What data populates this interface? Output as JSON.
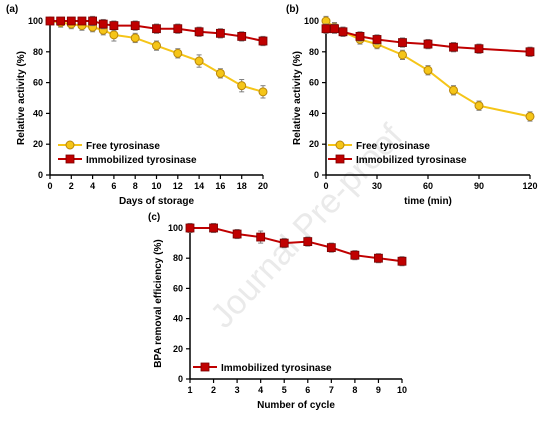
{
  "colors": {
    "free": "#f5c518",
    "free_stroke": "#b8860b",
    "immobilized": "#c00000",
    "axis": "#000000",
    "errorbar": "#7f7f7f",
    "watermark": "#cfcfcf"
  },
  "watermark": "Journal Pre-proof",
  "chart_data": [
    {
      "panel_label": "(a)",
      "type": "line",
      "xlabel": "Days of storage",
      "ylabel": "Relative activity (%)",
      "xlim": [
        0,
        20
      ],
      "ylim": [
        0,
        100
      ],
      "xticks": [
        0,
        2,
        4,
        6,
        8,
        10,
        12,
        14,
        16,
        18,
        20
      ],
      "yticks": [
        0,
        20,
        40,
        60,
        80,
        100
      ],
      "grid": false,
      "legend_position": "bottom-left",
      "series": [
        {
          "name": "Free tyrosinase",
          "marker": "circle",
          "x": [
            0,
            1,
            2,
            3,
            4,
            5,
            6,
            8,
            10,
            12,
            14,
            16,
            18,
            20
          ],
          "y": [
            100,
            99,
            98,
            97,
            96,
            94,
            91,
            89,
            84,
            79,
            74,
            66,
            58,
            54
          ],
          "err": [
            2,
            3,
            3,
            3,
            3,
            3,
            4,
            3,
            3,
            3,
            4,
            3,
            4,
            4
          ]
        },
        {
          "name": "Immobilized tyrosinase",
          "marker": "square",
          "x": [
            0,
            1,
            2,
            3,
            4,
            5,
            6,
            8,
            10,
            12,
            14,
            16,
            18,
            20
          ],
          "y": [
            100,
            100,
            100,
            100,
            100,
            98,
            97,
            97,
            95,
            95,
            93,
            92,
            90,
            87
          ],
          "err": [
            2,
            2,
            2,
            2,
            3,
            3,
            3,
            3,
            3,
            3,
            3,
            3,
            3,
            3
          ]
        }
      ]
    },
    {
      "panel_label": "(b)",
      "type": "line",
      "xlabel": "time (min)",
      "ylabel": "Relative activity (%)",
      "xlim": [
        0,
        120
      ],
      "ylim": [
        0,
        100
      ],
      "xticks": [
        0,
        30,
        60,
        90,
        120
      ],
      "yticks": [
        0,
        20,
        40,
        60,
        80,
        100
      ],
      "grid": false,
      "legend_position": "bottom-left",
      "series": [
        {
          "name": "Free tyrosinase",
          "marker": "circle",
          "x": [
            0,
            5,
            10,
            20,
            30,
            45,
            60,
            75,
            90,
            120
          ],
          "y": [
            100,
            96,
            93,
            88,
            85,
            78,
            68,
            55,
            45,
            38
          ],
          "err": [
            3,
            3,
            3,
            3,
            3,
            3,
            3,
            3,
            3,
            3
          ]
        },
        {
          "name": "Immobilized tyrosinase",
          "marker": "square",
          "x": [
            0,
            5,
            10,
            20,
            30,
            45,
            60,
            75,
            90,
            120
          ],
          "y": [
            95,
            95,
            93,
            90,
            88,
            86,
            85,
            83,
            82,
            80
          ],
          "err": [
            3,
            3,
            3,
            3,
            3,
            3,
            3,
            3,
            3,
            3
          ]
        }
      ]
    },
    {
      "panel_label": "(c)",
      "type": "line",
      "xlabel": "Number of cycle",
      "ylabel": "BPA removal efficiency (%)",
      "xlim": [
        1,
        10
      ],
      "ylim": [
        0,
        100
      ],
      "xticks": [
        1,
        2,
        3,
        4,
        5,
        6,
        7,
        8,
        9,
        10
      ],
      "yticks": [
        0,
        20,
        40,
        60,
        80,
        100
      ],
      "grid": false,
      "legend_position": "bottom-left",
      "series": [
        {
          "name": "Immobilized tyrosinase",
          "marker": "square",
          "x": [
            1,
            2,
            3,
            4,
            5,
            6,
            7,
            8,
            9,
            10
          ],
          "y": [
            100,
            100,
            96,
            94,
            90,
            91,
            87,
            82,
            80,
            78
          ],
          "err": [
            3,
            3,
            3,
            4,
            3,
            3,
            3,
            3,
            3,
            3
          ]
        }
      ]
    }
  ]
}
